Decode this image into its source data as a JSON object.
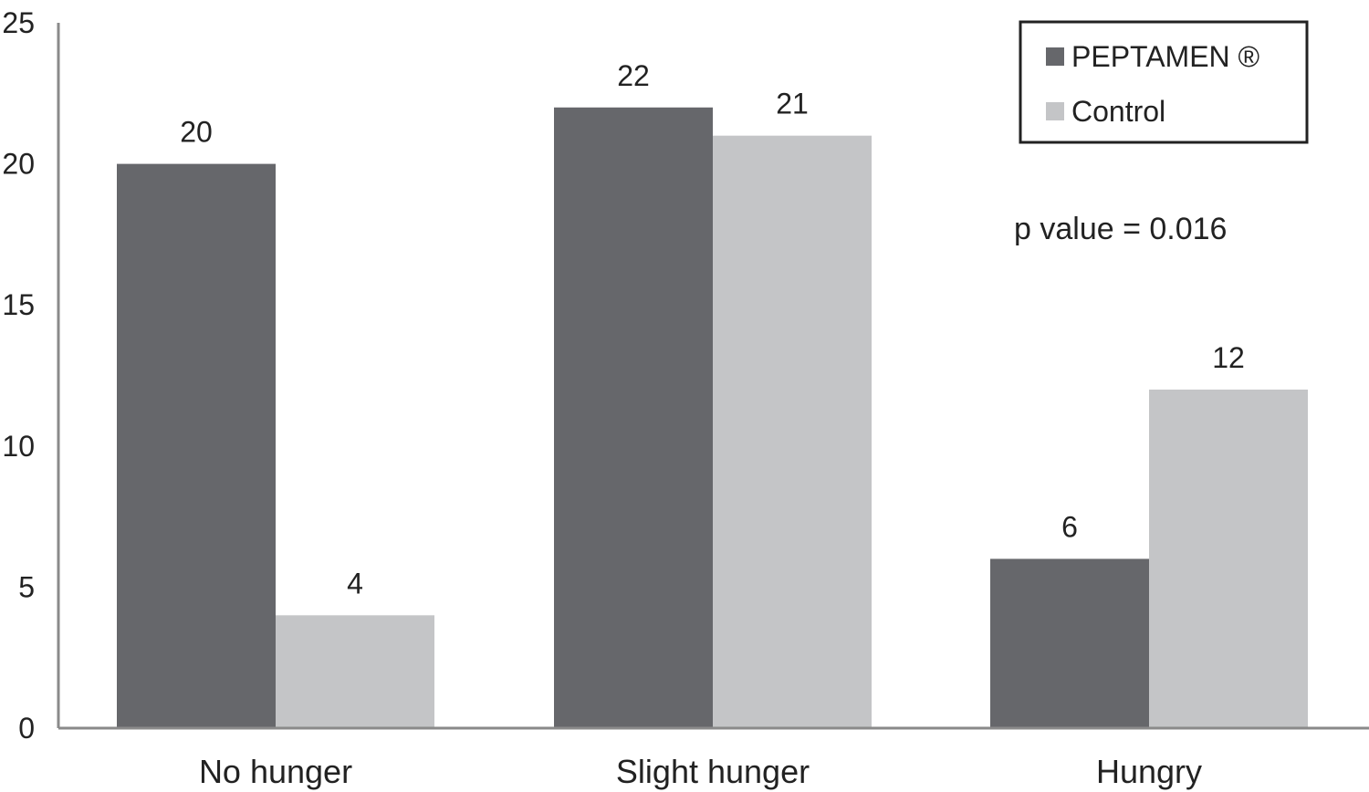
{
  "chart_data": {
    "type": "bar",
    "title": "",
    "xlabel": "",
    "ylabel": "",
    "categories": [
      "No hunger",
      "Slight hunger",
      "Hungry"
    ],
    "series": [
      {
        "name": "PEPTAMEN ®",
        "values": [
          20,
          22,
          6
        ],
        "color": "#66676b"
      },
      {
        "name": "Control",
        "values": [
          4,
          21,
          12
        ],
        "color": "#c4c5c7"
      }
    ],
    "ylim": [
      0,
      25
    ],
    "yticks": [
      0,
      5,
      10,
      15,
      20,
      25
    ],
    "grid": false,
    "legend": {
      "placement": "top-right",
      "border": true
    },
    "annotations": [
      {
        "text": "p value = 0.016"
      }
    ]
  }
}
